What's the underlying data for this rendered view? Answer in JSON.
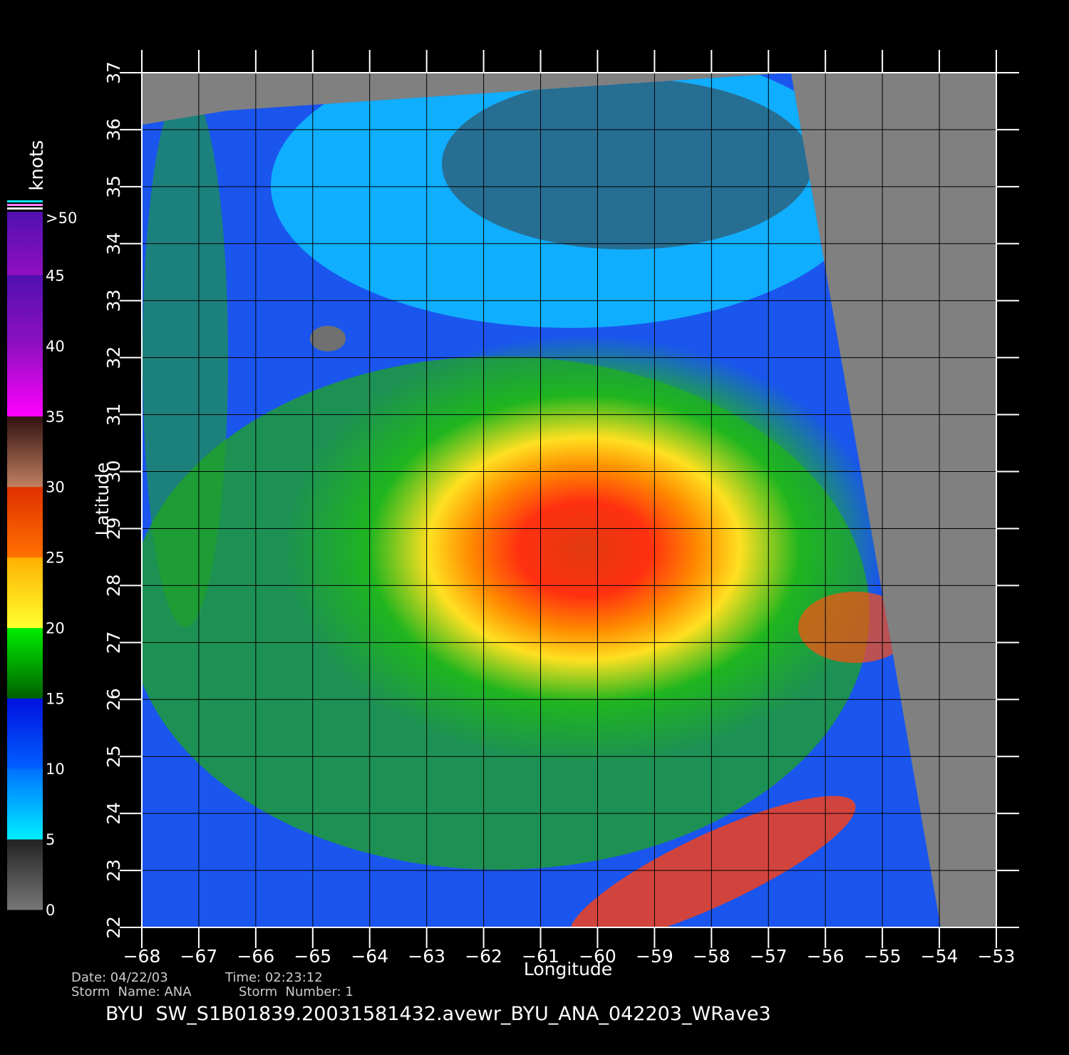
{
  "plot": {
    "xlabel": "Longitude",
    "ylabel": "Latitude",
    "xticks": [
      "−68",
      "−67",
      "−66",
      "−65",
      "−64",
      "−63",
      "−62",
      "−61",
      "−60",
      "−59",
      "−58",
      "−57",
      "−56",
      "−55",
      "−54",
      "−53"
    ],
    "yticks": [
      "22",
      "23",
      "24",
      "25",
      "26",
      "27",
      "28",
      "29",
      "30",
      "31",
      "32",
      "33",
      "34",
      "35",
      "36",
      "37"
    ]
  },
  "colorbar": {
    "title": "knots",
    "labels": [
      "0",
      "5",
      "10",
      "15",
      "20",
      "25",
      "30",
      "35",
      "40",
      "45",
      ">50"
    ]
  },
  "footer": {
    "date": "Date: 04/22/03",
    "time": "Time: 02:23:12",
    "storm_name": "Storm  Name: ANA",
    "storm_number": "Storm  Number: 1",
    "file": "BYU  SW_S1B01839.20031581432.avewr_BYU_ANA_042203_WRave3"
  }
}
